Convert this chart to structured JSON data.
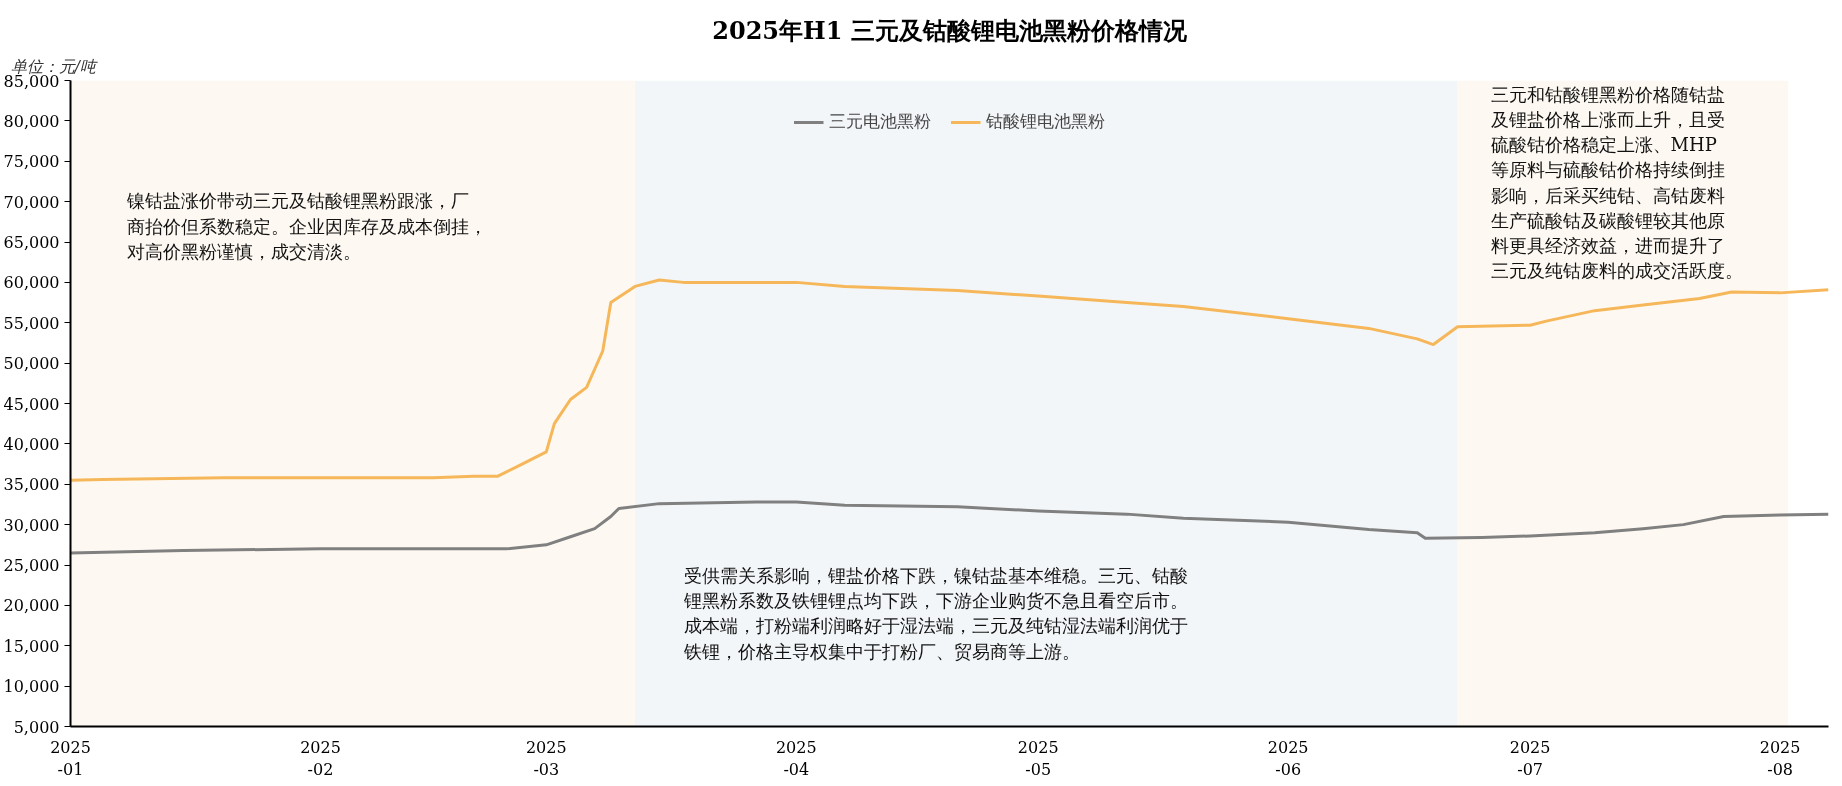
{
  "chart_data": {
    "type": "line",
    "title": "2025年H1 三元及钴酸锂电池黑粉价格情况",
    "ylabel": "单位：元/吨",
    "xlim": [
      "2025-01-01",
      "2025-08-07"
    ],
    "xticks": [
      {
        "value": "2025-01-01",
        "label": "2025\n-01"
      },
      {
        "value": "2025-02-01",
        "label": "2025\n-02"
      },
      {
        "value": "2025-03-01",
        "label": "2025\n-03"
      },
      {
        "value": "2025-04-01",
        "label": "2025\n-04"
      },
      {
        "value": "2025-05-01",
        "label": "2025\n-05"
      },
      {
        "value": "2025-06-01",
        "label": "2025\n-06"
      },
      {
        "value": "2025-07-01",
        "label": "2025\n-07"
      },
      {
        "value": "2025-08-01",
        "label": "2025\n-08"
      }
    ],
    "ylim": [
      5000,
      85000
    ],
    "yticks": [
      {
        "value": 5000,
        "label": "5,000"
      },
      {
        "value": 10000,
        "label": "10,000"
      },
      {
        "value": 15000,
        "label": "15,000"
      },
      {
        "value": 20000,
        "label": "20,000"
      },
      {
        "value": 25000,
        "label": "25,000"
      },
      {
        "value": 30000,
        "label": "30,000"
      },
      {
        "value": 35000,
        "label": "35,000"
      },
      {
        "value": 40000,
        "label": "40,000"
      },
      {
        "value": 45000,
        "label": "45,000"
      },
      {
        "value": 50000,
        "label": "50,000"
      },
      {
        "value": 55000,
        "label": "55,000"
      },
      {
        "value": 60000,
        "label": "60,000"
      },
      {
        "value": 65000,
        "label": "65,000"
      },
      {
        "value": 70000,
        "label": "70,000"
      },
      {
        "value": 75000,
        "label": "75,000"
      },
      {
        "value": 80000,
        "label": "80,000"
      },
      {
        "value": 85000,
        "label": "85,000"
      }
    ],
    "grid": false,
    "legend": "top",
    "series": [
      {
        "name": "三元电池黑粉",
        "color": "#808080",
        "x": [
          "2025-01-01",
          "2025-01-15",
          "2025-02-01",
          "2025-02-20",
          "2025-02-24",
          "2025-03-01",
          "2025-03-04",
          "2025-03-07",
          "2025-03-09",
          "2025-03-10",
          "2025-03-15",
          "2025-03-27",
          "2025-04-01",
          "2025-04-07",
          "2025-04-21",
          "2025-04-25",
          "2025-05-01",
          "2025-05-12",
          "2025-05-19",
          "2025-06-01",
          "2025-06-11",
          "2025-06-17",
          "2025-06-18",
          "2025-06-25",
          "2025-07-01",
          "2025-07-09",
          "2025-07-15",
          "2025-07-20",
          "2025-07-25",
          "2025-08-01",
          "2025-08-07"
        ],
        "values": [
          26500,
          26800,
          27000,
          27000,
          27000,
          27500,
          28500,
          29500,
          31000,
          32000,
          32600,
          32800,
          32800,
          32400,
          32200,
          32000,
          31700,
          31300,
          30800,
          30300,
          29400,
          29000,
          28300,
          28400,
          28600,
          29000,
          29500,
          30000,
          31000,
          31200,
          31300
        ]
      },
      {
        "name": "钴酸锂电池黑粉",
        "color": "#f6b75a",
        "x": [
          "2025-01-01",
          "2025-01-05",
          "2025-01-20",
          "2025-02-15",
          "2025-02-20",
          "2025-02-23",
          "2025-02-26",
          "2025-03-01",
          "2025-03-02",
          "2025-03-04",
          "2025-03-06",
          "2025-03-08",
          "2025-03-09",
          "2025-03-12",
          "2025-03-15",
          "2025-03-18",
          "2025-04-01",
          "2025-04-07",
          "2025-04-21",
          "2025-05-01",
          "2025-05-12",
          "2025-05-19",
          "2025-06-01",
          "2025-06-11",
          "2025-06-17",
          "2025-06-19",
          "2025-06-22",
          "2025-07-01",
          "2025-07-03",
          "2025-07-09",
          "2025-07-15",
          "2025-07-22",
          "2025-07-26",
          "2025-08-01",
          "2025-08-07"
        ],
        "values": [
          35500,
          35600,
          35800,
          35800,
          36000,
          36000,
          37500,
          39000,
          42500,
          45500,
          47000,
          51500,
          57500,
          59500,
          60300,
          60000,
          60000,
          59500,
          59000,
          58300,
          57500,
          57000,
          55500,
          54300,
          53000,
          52300,
          54500,
          54700,
          55200,
          56500,
          57200,
          58000,
          58800,
          58700,
          59100
        ]
      }
    ],
    "bands": [
      {
        "axis": "x",
        "from": "2025-01-01",
        "to": "2025-03-12",
        "color": "#fdf9f2"
      },
      {
        "axis": "x",
        "from": "2025-03-12",
        "to": "2025-06-22",
        "color": "#f3f6f8"
      },
      {
        "axis": "x",
        "from": "2025-06-22",
        "to": "2025-08-02",
        "color": "#fdf9f2"
      }
    ],
    "annotations": [
      "镍钴盐涨价带动三元及钴酸锂黑粉跟涨，厂商抬价但系数稳定。企业因库存及成本倒挂，对高价黑粉谨慎，成交清淡。",
      "受供需关系影响，锂盐价格下跌，镍钴盐基本维稳。三元、钴酸锂黑粉系数及铁锂锂点均下跌，下游企业购货不急且看空后市。成本端，打粉端利润略好于湿法端，三元及纯钴湿法端利润优于铁锂，价格主导权集中于打粉厂、贸易商等上游。",
      "三元和钴酸锂黑粉价格随钴盐及锂盐价格上涨而上升，且受硫酸钴价格稳定上涨、MHP 等原料与硫酸钴价格持续倒挂影响，后采买纯钴、高钴废料生产硫酸钴及碳酸锂较其他原料更具经济效益，进而提升了三元及纯钴废料的成交活跃度。"
    ]
  }
}
